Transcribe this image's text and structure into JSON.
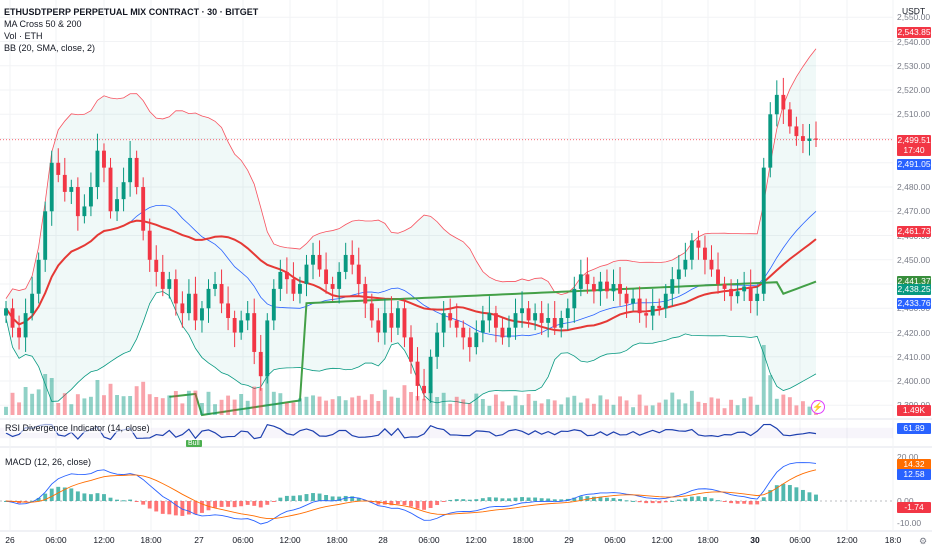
{
  "header": {
    "symbol_line": "ETHUSDTPERP PERPETUAL MIX CONTRACT · 30 · BITGET",
    "indicators": [
      "MA Cross 50 & 200",
      "Vol · ETH",
      "BB (20, SMA, close, 2)"
    ],
    "currency": "USDT"
  },
  "price_axis": {
    "ticks": [
      "2,550.00",
      "2,540.00",
      "2,530.00",
      "2,520.00",
      "2,510.00",
      "2,500.00",
      "2,490.00",
      "2,480.00",
      "2,470.00",
      "2,460.00",
      "2,450.00",
      "2,440.00",
      "2,430.00",
      "2,420.00",
      "2,410.00",
      "2,400.00",
      "2,390.00"
    ],
    "tags": [
      {
        "text": "2,543.85",
        "value": 2543.85,
        "color": "#f23645"
      },
      {
        "text": "2,499.51",
        "sub": "17:40",
        "value": 2499.51,
        "color": "#f23645"
      },
      {
        "text": "2,491.05",
        "value": 2491.05,
        "color": "#2962ff"
      },
      {
        "text": "2,461.73",
        "value": 2461.73,
        "color": "#f23645"
      },
      {
        "text": "2,441.37",
        "value": 2441.37,
        "color": "#388e3c"
      },
      {
        "text": "2,438.25",
        "value": 2438.25,
        "color": "#089981"
      },
      {
        "text": "2,433.76",
        "value": 2433.76,
        "color": "#2962ff"
      }
    ],
    "volume_tag": {
      "text": "1.49K",
      "color": "#f23645"
    }
  },
  "rsi_pane": {
    "label": "RSI Divergence Indicator (14, close)",
    "value_tag": "61.89",
    "value_color": "#2962ff",
    "bull_label": "Bull"
  },
  "macd_pane": {
    "label": "MACD (12, 26, close)",
    "ticks": [
      "20.00",
      "0.00",
      "-10.00"
    ],
    "tags": [
      {
        "text": "14.32",
        "color": "#ff6d00"
      },
      {
        "text": "12.58",
        "color": "#2962ff"
      },
      {
        "text": "-1.74",
        "color": "#f23645"
      }
    ]
  },
  "time_axis": {
    "labels": [
      {
        "text": "26",
        "bold": false
      },
      {
        "text": "06:00",
        "bold": false
      },
      {
        "text": "12:00",
        "bold": false
      },
      {
        "text": "18:00",
        "bold": false
      },
      {
        "text": "27",
        "bold": false
      },
      {
        "text": "06:00",
        "bold": false
      },
      {
        "text": "12:00",
        "bold": false
      },
      {
        "text": "18:00",
        "bold": false
      },
      {
        "text": "28",
        "bold": false
      },
      {
        "text": "06:00",
        "bold": false
      },
      {
        "text": "12:00",
        "bold": false
      },
      {
        "text": "18:00",
        "bold": false
      },
      {
        "text": "29",
        "bold": false
      },
      {
        "text": "06:00",
        "bold": false
      },
      {
        "text": "12:00",
        "bold": false
      },
      {
        "text": "18:00",
        "bold": false
      },
      {
        "text": "30",
        "bold": true
      },
      {
        "text": "06:00",
        "bold": false
      },
      {
        "text": "12:00",
        "bold": false
      },
      {
        "text": "18:0",
        "bold": false
      }
    ]
  },
  "chart_data": {
    "type": "candlestick",
    "interval": "30",
    "price_range": [
      2386,
      2553
    ],
    "candles_closes": [
      2430,
      2422,
      2418,
      2428,
      2436,
      2450,
      2470,
      2490,
      2485,
      2478,
      2480,
      2468,
      2472,
      2480,
      2495,
      2488,
      2470,
      2475,
      2482,
      2492,
      2480,
      2462,
      2450,
      2445,
      2438,
      2442,
      2432,
      2428,
      2436,
      2425,
      2430,
      2438,
      2440,
      2432,
      2426,
      2420,
      2425,
      2428,
      2412,
      2402,
      2425,
      2438,
      2445,
      2442,
      2436,
      2440,
      2448,
      2452,
      2446,
      2440,
      2438,
      2445,
      2452,
      2448,
      2440,
      2432,
      2425,
      2420,
      2428,
      2422,
      2430,
      2418,
      2408,
      2398,
      2395,
      2410,
      2420,
      2428,
      2425,
      2422,
      2418,
      2414,
      2420,
      2425,
      2428,
      2422,
      2418,
      2422,
      2428,
      2430,
      2425,
      2428,
      2424,
      2426,
      2422,
      2426,
      2430,
      2438,
      2444,
      2440,
      2437,
      2441,
      2437,
      2440,
      2436,
      2432,
      2434,
      2428,
      2427,
      2431,
      2430,
      2436,
      2442,
      2446,
      2450,
      2458,
      2455,
      2450,
      2446,
      2440,
      2438,
      2435,
      2437,
      2439,
      2433,
      2436,
      2488,
      2510,
      2518,
      2512,
      2505,
      2501,
      2499,
      2500,
      2499.51
    ],
    "volume_scale": "1.49K"
  },
  "extras": {
    "bolt_icon": "lightning-icon",
    "settings_icon": "gear-icon"
  }
}
